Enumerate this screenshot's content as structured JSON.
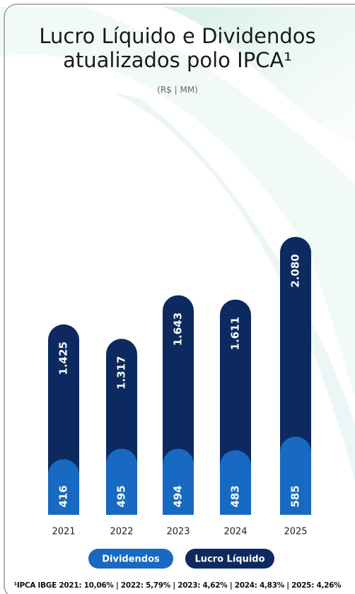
{
  "chart_data": {
    "type": "bar",
    "title": "Lucro Líquido e Dividendos atualizados polo IPCA¹",
    "subtitle": "(R$ | MM)",
    "categories": [
      "2021",
      "2022",
      "2023",
      "2024",
      "2025"
    ],
    "series": [
      {
        "name": "Dividendos",
        "color": "#1769c2",
        "values": [
          416,
          495,
          494,
          483,
          585
        ]
      },
      {
        "name": "Lucro Líquido",
        "color": "#0c2a5f",
        "values": [
          1425,
          1317,
          1643,
          1611,
          2080
        ],
        "value_labels": [
          "1.425",
          "1.317",
          "1.643",
          "1.611",
          "2.080"
        ]
      }
    ],
    "footnote": "¹IPCA IBGE 2021: 10,06% | 2022: 5,79% | 2023: 4,62% | 2024: 4,83% | 2025: 4,26%"
  }
}
